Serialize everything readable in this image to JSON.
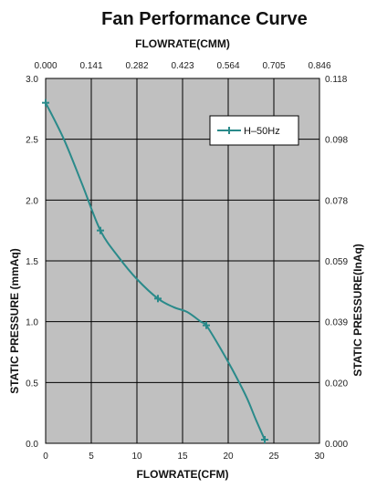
{
  "chart_data": {
    "type": "line",
    "title": "Fan Performance Curve",
    "xlabel_bottom": "FLOWRATE(CFM)",
    "xlabel_top": "FLOWRATE(CMM)",
    "ylabel_left": "STATIC PRESSURE (mmAq)",
    "ylabel_right": "STATIC PRESSURE(InAq)",
    "xlim": [
      0,
      30
    ],
    "ylim": [
      0,
      3.0
    ],
    "x_ticks_bottom": [
      "0",
      "5",
      "10",
      "15",
      "20",
      "25",
      "30"
    ],
    "x_ticks_top": [
      "0.000",
      "0.141",
      "0.282",
      "0.423",
      "0.564",
      "0.705",
      "0.846"
    ],
    "y_ticks_left": [
      "0.0",
      "0.5",
      "1.0",
      "1.5",
      "2.0",
      "2.5",
      "3.0"
    ],
    "y_ticks_right": [
      "0.000",
      "0.020",
      "0.039",
      "0.059",
      "0.078",
      "0.098",
      "0.118"
    ],
    "grid": true,
    "legend_position": "top-right",
    "series": [
      {
        "name": "H–50Hz",
        "color": "#2a8a8a",
        "markers": [
          {
            "x": 0,
            "y": 2.8
          },
          {
            "x": 6,
            "y": 1.75
          },
          {
            "x": 12.3,
            "y": 1.19
          },
          {
            "x": 17.6,
            "y": 0.97
          },
          {
            "x": 24,
            "y": 0.03
          }
        ],
        "curve": [
          {
            "x": 0,
            "y": 2.8
          },
          {
            "x": 2,
            "y": 2.5
          },
          {
            "x": 4,
            "y": 2.13
          },
          {
            "x": 6,
            "y": 1.75
          },
          {
            "x": 8,
            "y": 1.53
          },
          {
            "x": 10,
            "y": 1.35
          },
          {
            "x": 12.3,
            "y": 1.19
          },
          {
            "x": 14,
            "y": 1.12
          },
          {
            "x": 15.5,
            "y": 1.08
          },
          {
            "x": 17,
            "y": 1.0
          },
          {
            "x": 17.6,
            "y": 0.97
          },
          {
            "x": 19,
            "y": 0.8
          },
          {
            "x": 20.5,
            "y": 0.6
          },
          {
            "x": 22,
            "y": 0.38
          },
          {
            "x": 23,
            "y": 0.2
          },
          {
            "x": 24,
            "y": 0.03
          }
        ]
      }
    ]
  }
}
